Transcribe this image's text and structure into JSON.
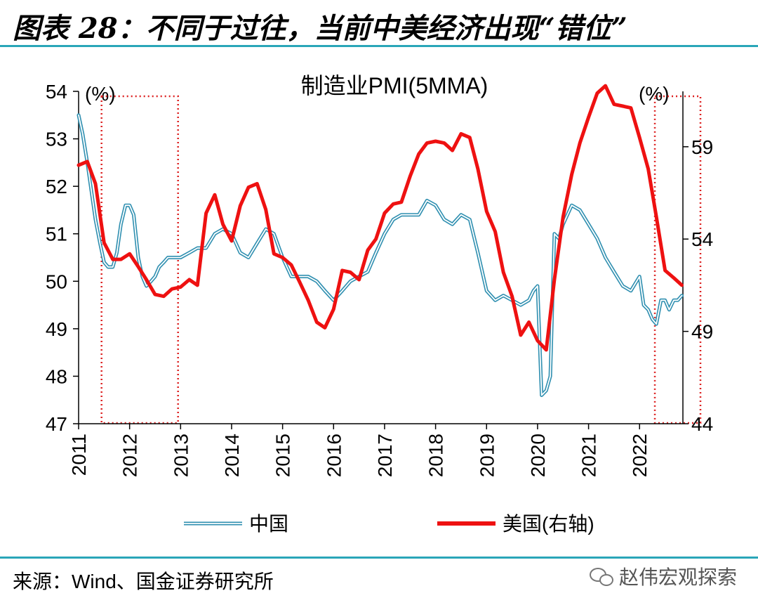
{
  "figure_title": "图表 28：不同于过往，当前中美经济出现“错位”",
  "source_text": "来源：Wind、国金证券研究所",
  "watermark_text": "赵伟宏观探索",
  "watermark_icon": "wechat-icon",
  "colors": {
    "rule": "#2aa6b8",
    "china": "#2f8fb0",
    "us": "#ee1111",
    "box": "#dd2222"
  },
  "chart_data": {
    "type": "line",
    "title": "制造业PMI(5MMA)",
    "left_axis_label": "(%)",
    "right_axis_label": "(%)",
    "left_ylim": [
      47,
      54
    ],
    "left_ticks": [
      47,
      48,
      49,
      50,
      51,
      52,
      53,
      54
    ],
    "right_ylim": [
      44,
      62
    ],
    "right_ticks": [
      44,
      49,
      54,
      59
    ],
    "xlim": [
      2011.0,
      2022.85
    ],
    "x_ticks": [
      2011,
      2012,
      2013,
      2014,
      2015,
      2016,
      2017,
      2018,
      2019,
      2020,
      2021,
      2022
    ],
    "x_tick_labels": [
      "2011",
      "2012",
      "2013",
      "2014",
      "2015",
      "2016",
      "2017",
      "2018",
      "2019",
      "2020",
      "2021",
      "2022"
    ],
    "legend_position": "bottom",
    "highlight_ranges": [
      [
        2011.45,
        2012.95
      ],
      [
        2022.3,
        2023.35
      ]
    ],
    "series": [
      {
        "name": "中国",
        "axis": "left",
        "style": "double",
        "x": [
          2011.0,
          2011.08,
          2011.17,
          2011.25,
          2011.33,
          2011.42,
          2011.5,
          2011.58,
          2011.67,
          2011.75,
          2011.83,
          2011.92,
          2012.0,
          2012.08,
          2012.17,
          2012.25,
          2012.33,
          2012.42,
          2012.5,
          2012.58,
          2012.67,
          2012.75,
          2012.83,
          2012.92,
          2013.0,
          2013.17,
          2013.33,
          2013.5,
          2013.67,
          2013.83,
          2014.0,
          2014.17,
          2014.33,
          2014.5,
          2014.67,
          2014.83,
          2015.0,
          2015.17,
          2015.33,
          2015.5,
          2015.67,
          2015.83,
          2016.0,
          2016.17,
          2016.33,
          2016.5,
          2016.67,
          2016.83,
          2017.0,
          2017.17,
          2017.33,
          2017.5,
          2017.67,
          2017.83,
          2018.0,
          2018.17,
          2018.33,
          2018.5,
          2018.67,
          2018.83,
          2019.0,
          2019.17,
          2019.33,
          2019.5,
          2019.67,
          2019.83,
          2019.92,
          2020.0,
          2020.08,
          2020.17,
          2020.25,
          2020.33,
          2020.42,
          2020.5,
          2020.67,
          2020.83,
          2021.0,
          2021.17,
          2021.33,
          2021.5,
          2021.67,
          2021.83,
          2022.0,
          2022.08,
          2022.17,
          2022.25,
          2022.33,
          2022.42,
          2022.5,
          2022.58,
          2022.67,
          2022.75,
          2022.83
        ],
        "values": [
          53.5,
          53.1,
          52.5,
          51.9,
          51.3,
          50.8,
          50.4,
          50.3,
          50.3,
          50.6,
          51.2,
          51.6,
          51.6,
          51.4,
          50.5,
          50.1,
          49.9,
          50.0,
          50.1,
          50.3,
          50.4,
          50.5,
          50.5,
          50.5,
          50.5,
          50.6,
          50.7,
          50.7,
          51.0,
          51.1,
          51.0,
          50.6,
          50.5,
          50.8,
          51.1,
          51.0,
          50.5,
          50.1,
          50.1,
          50.1,
          50.0,
          49.8,
          49.6,
          49.8,
          50.0,
          50.1,
          50.2,
          50.6,
          51.0,
          51.3,
          51.4,
          51.4,
          51.4,
          51.7,
          51.6,
          51.3,
          51.2,
          51.4,
          51.3,
          50.6,
          49.8,
          49.6,
          49.7,
          49.6,
          49.5,
          49.6,
          49.8,
          49.9,
          47.6,
          47.7,
          48.0,
          51.0,
          50.9,
          51.2,
          51.6,
          51.5,
          51.2,
          50.9,
          50.5,
          50.2,
          49.9,
          49.8,
          50.1,
          49.5,
          49.4,
          49.2,
          49.1,
          49.6,
          49.6,
          49.4,
          49.6,
          49.6,
          49.7
        ]
      },
      {
        "name": "美国(右轴)",
        "axis": "right",
        "style": "solid",
        "x": [
          2011.0,
          2011.17,
          2011.33,
          2011.5,
          2011.67,
          2011.83,
          2012.0,
          2012.17,
          2012.33,
          2012.5,
          2012.67,
          2012.83,
          2013.0,
          2013.17,
          2013.33,
          2013.5,
          2013.67,
          2013.83,
          2014.0,
          2014.17,
          2014.33,
          2014.5,
          2014.67,
          2014.83,
          2015.0,
          2015.17,
          2015.33,
          2015.5,
          2015.67,
          2015.83,
          2016.0,
          2016.17,
          2016.33,
          2016.5,
          2016.67,
          2016.83,
          2017.0,
          2017.17,
          2017.33,
          2017.5,
          2017.67,
          2017.83,
          2018.0,
          2018.17,
          2018.33,
          2018.5,
          2018.67,
          2018.83,
          2019.0,
          2019.17,
          2019.33,
          2019.5,
          2019.67,
          2019.83,
          2020.0,
          2020.17,
          2020.33,
          2020.5,
          2020.67,
          2020.83,
          2021.0,
          2021.17,
          2021.33,
          2021.5,
          2021.67,
          2021.83,
          2022.0,
          2022.17,
          2022.33,
          2022.5,
          2022.67,
          2022.83
        ],
        "values": [
          58.0,
          58.2,
          57.0,
          53.8,
          52.9,
          52.9,
          53.2,
          52.5,
          51.8,
          51.0,
          50.9,
          51.3,
          51.4,
          51.8,
          51.5,
          55.4,
          56.4,
          54.8,
          53.9,
          55.8,
          56.8,
          57.0,
          55.6,
          53.2,
          53.0,
          52.6,
          51.7,
          50.7,
          49.5,
          49.2,
          50.2,
          52.3,
          52.2,
          51.8,
          53.4,
          54.0,
          55.4,
          55.9,
          56.0,
          57.4,
          58.6,
          59.2,
          59.3,
          59.2,
          58.8,
          59.7,
          59.5,
          57.8,
          55.5,
          54.4,
          52.2,
          50.9,
          48.8,
          49.5,
          48.5,
          48.0,
          51.8,
          55.2,
          57.5,
          59.2,
          60.6,
          61.9,
          62.3,
          61.3,
          61.2,
          61.1,
          59.5,
          57.8,
          55.2,
          52.3,
          51.9,
          51.5
        ]
      }
    ]
  }
}
